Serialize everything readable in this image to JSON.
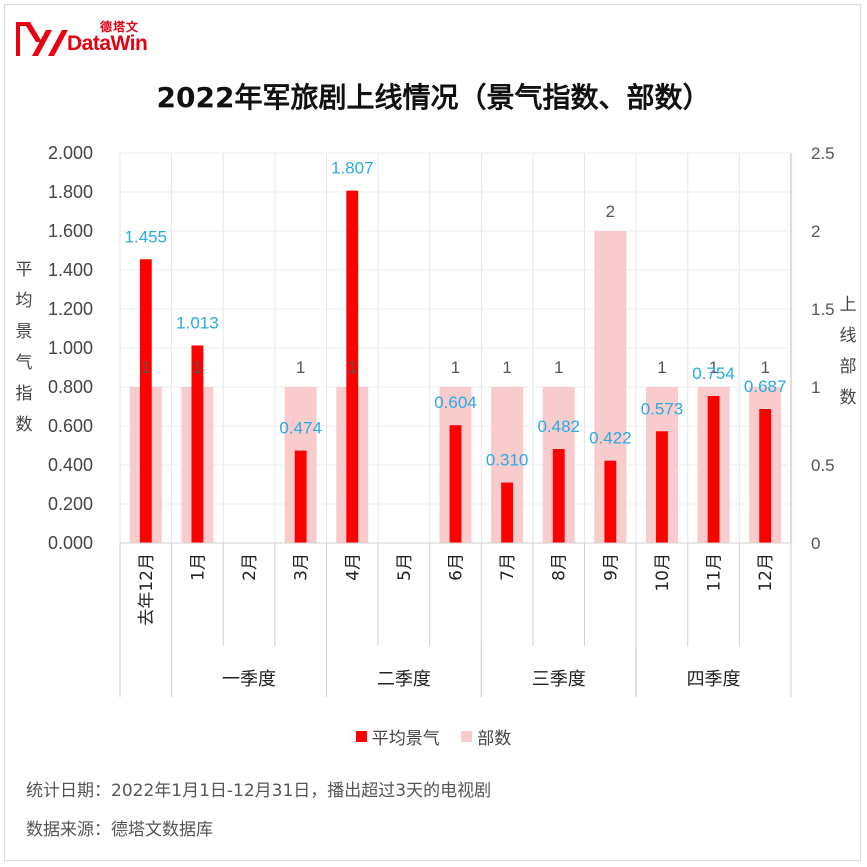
{
  "brand": {
    "name_cn": "德塔文",
    "name_en": "DataWin",
    "logo_color": "#e60012"
  },
  "title": "2022年军旅剧上线情况（景气指数、部数）",
  "footer": {
    "line1": "统计日期：2022年1月1日-12月31日，播出超过3天的电视剧",
    "line2": "数据来源：德塔文数据库"
  },
  "chart_data": {
    "type": "bar",
    "categories": [
      "去年12月",
      "1月",
      "2月",
      "3月",
      "4月",
      "5月",
      "6月",
      "7月",
      "8月",
      "9月",
      "10月",
      "11月",
      "12月"
    ],
    "groups": [
      {
        "label": "一季度",
        "span": [
          1,
          3
        ]
      },
      {
        "label": "二季度",
        "span": [
          4,
          6
        ]
      },
      {
        "label": "三季度",
        "span": [
          7,
          9
        ]
      },
      {
        "label": "四季度",
        "span": [
          10,
          12
        ]
      }
    ],
    "series": [
      {
        "name": "平均景气",
        "axis": "left",
        "color": "#ff0000",
        "values": [
          1.455,
          1.013,
          null,
          0.474,
          1.807,
          null,
          0.604,
          0.31,
          0.482,
          0.422,
          0.573,
          0.754,
          0.687
        ],
        "labels": [
          "1.455",
          "1.013",
          "",
          "0.474",
          "1.807",
          "",
          "0.604",
          "0.310",
          "0.482",
          "0.422",
          "0.573",
          "0.754",
          "0.687"
        ]
      },
      {
        "name": "部数",
        "axis": "right",
        "color": "#f8cccc",
        "values": [
          1,
          1,
          null,
          1,
          1,
          null,
          1,
          1,
          1,
          2,
          1,
          1,
          1
        ],
        "labels": [
          "1",
          "1",
          "",
          "1",
          "1",
          "",
          "1",
          "1",
          "1",
          "2",
          "1",
          "1",
          "1"
        ]
      }
    ],
    "ylabel_left": "平均景气指数",
    "ylabel_right": "上线部数",
    "ylim_left": [
      0,
      2
    ],
    "ylim_right": [
      0,
      2.5
    ],
    "yticks_left": [
      "0.000",
      "0.200",
      "0.400",
      "0.600",
      "0.800",
      "1.000",
      "1.200",
      "1.400",
      "1.600",
      "1.800",
      "2.000"
    ],
    "yticks_right": [
      "0",
      "0.5",
      "1",
      "1.5",
      "2",
      "2.5"
    ],
    "yticks_right_values": [
      0,
      0.5,
      1,
      1.5,
      2,
      2.5
    ],
    "grid": true,
    "legend_position": "bottom",
    "value_label_color": "#29abe2"
  }
}
